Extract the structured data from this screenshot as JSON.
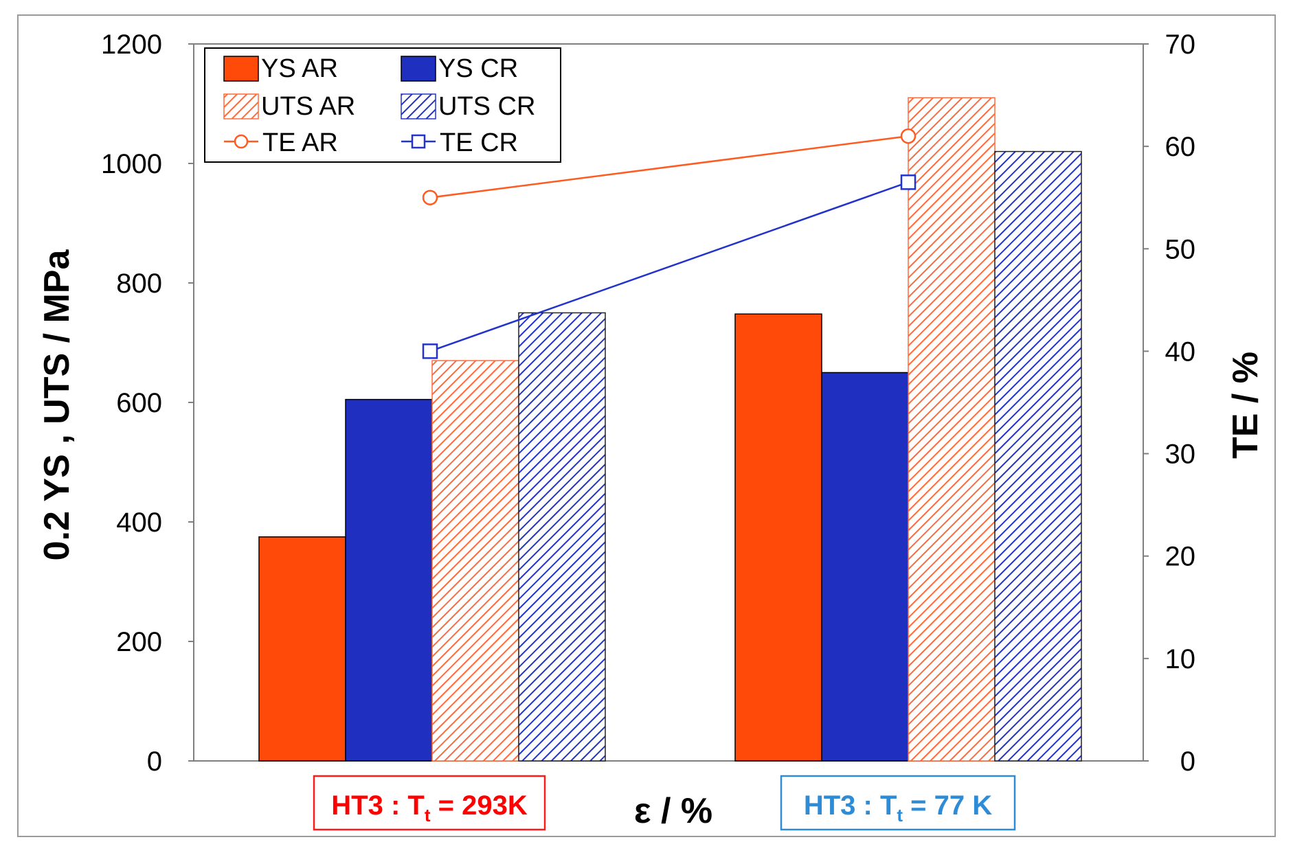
{
  "chart_data": {
    "type": "bar",
    "title": "",
    "xlabel": "ε / %",
    "ylabel": "0.2 YS , UTS / MPa",
    "y2label": "TE / %",
    "ylim": [
      0,
      1200
    ],
    "y2lim": [
      0,
      70
    ],
    "yticks": [
      "0",
      "200",
      "400",
      "600",
      "800",
      "1000",
      "1200"
    ],
    "y2ticks": [
      "0",
      "10",
      "20",
      "30",
      "40",
      "50",
      "60",
      "70"
    ],
    "grid": false,
    "legend_position": "top-left",
    "groups": [
      {
        "prefix": "HT3 : T",
        "sub": "t",
        "suffix": " = 293K",
        "color": "#ff0000"
      },
      {
        "prefix": "HT3 : T",
        "sub": "t",
        "suffix": " = 77 K",
        "color": "#2e8bd6"
      }
    ],
    "series": [
      {
        "name": "YS AR",
        "kind": "bar",
        "fill": "solid",
        "color": "#ff4a0a",
        "values": [
          375,
          748
        ]
      },
      {
        "name": "YS CR",
        "kind": "bar",
        "fill": "solid",
        "color": "#1f2fbf",
        "values": [
          605,
          650
        ]
      },
      {
        "name": "UTS AR",
        "kind": "bar",
        "fill": "hatch",
        "color": "#ff6a3a",
        "values": [
          670,
          1110
        ]
      },
      {
        "name": "UTS CR",
        "kind": "bar",
        "fill": "hatch",
        "color": "#2233c8",
        "values": [
          750,
          1020
        ]
      },
      {
        "name": "TE AR",
        "kind": "line",
        "marker": "circle",
        "axis": "right",
        "color": "#ff5a1f",
        "values": [
          55,
          61
        ]
      },
      {
        "name": "TE CR",
        "kind": "line",
        "marker": "square",
        "axis": "right",
        "color": "#2233cc",
        "values": [
          40,
          56.5
        ]
      }
    ]
  }
}
